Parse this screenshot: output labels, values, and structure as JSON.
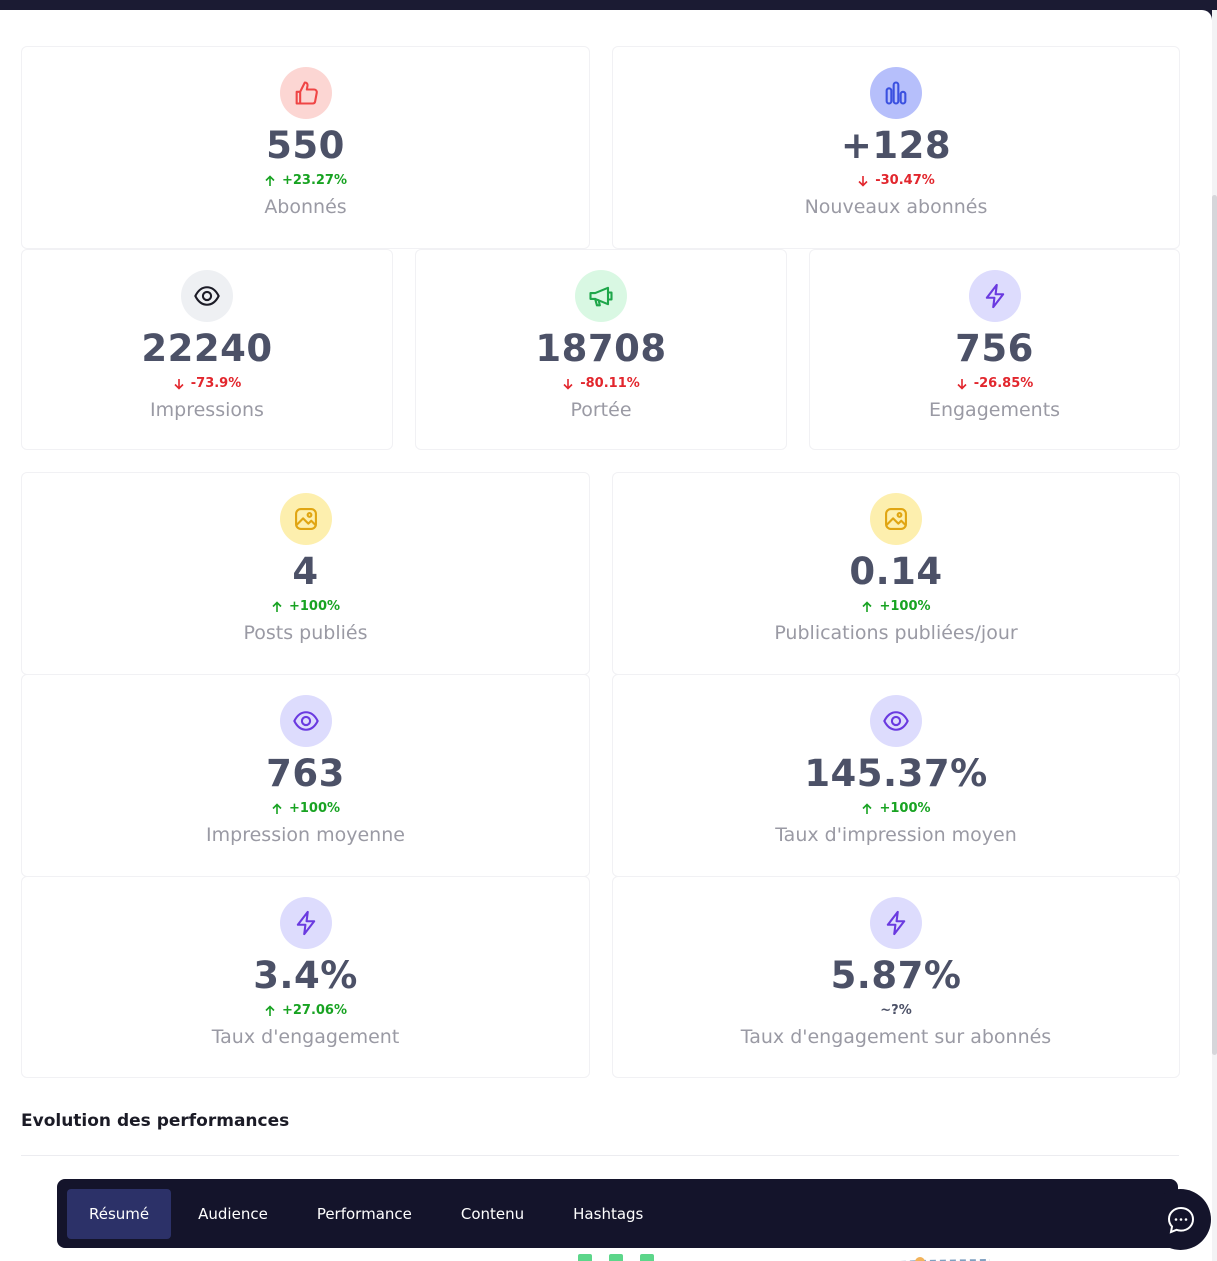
{
  "metrics": [
    {
      "value": "550",
      "change": "+23.27%",
      "direction": "up",
      "label": "Abonnés",
      "icon": "thumbs-up-icon",
      "icon_bg": "#fcd6d3",
      "icon_color": "#ef4545"
    },
    {
      "value": "+128",
      "change": "-30.47%",
      "direction": "down",
      "label": "Nouveaux abonnés",
      "icon": "bar-chart-icon",
      "icon_bg": "#b6bffb",
      "icon_color": "#3b51e0"
    },
    {
      "value": "22240",
      "change": "-73.9%",
      "direction": "down",
      "label": "Impressions",
      "icon": "eye-icon",
      "icon_bg": "#eef0f3",
      "icon_color": "#1b1b26"
    },
    {
      "value": "18708",
      "change": "-80.11%",
      "direction": "down",
      "label": "Portée",
      "icon": "megaphone-icon",
      "icon_bg": "#d9f8e3",
      "icon_color": "#1ea64a"
    },
    {
      "value": "756",
      "change": "-26.85%",
      "direction": "down",
      "label": "Engagements",
      "icon": "lightning-icon",
      "icon_bg": "#dddcfd",
      "icon_color": "#6a3ae0"
    },
    {
      "value": "4",
      "change": "+100%",
      "direction": "up",
      "label": "Posts publiés",
      "icon": "image-icon",
      "icon_bg": "#fdefae",
      "icon_color": "#e0a512"
    },
    {
      "value": "0.14",
      "change": "+100%",
      "direction": "up",
      "label": "Publications publiées/jour",
      "icon": "image-icon",
      "icon_bg": "#fdefae",
      "icon_color": "#e0a512"
    },
    {
      "value": "763",
      "change": "+100%",
      "direction": "up",
      "label": "Impression moyenne",
      "icon": "eye-icon",
      "icon_bg": "#dddcfd",
      "icon_color": "#6a3ae0"
    },
    {
      "value": "145.37%",
      "change": "+100%",
      "direction": "up",
      "label": "Taux d'impression moyen",
      "icon": "eye-icon",
      "icon_bg": "#dddcfd",
      "icon_color": "#6a3ae0"
    },
    {
      "value": "3.4%",
      "change": "+27.06%",
      "direction": "up",
      "label": "Taux d'engagement",
      "icon": "lightning-icon",
      "icon_bg": "#dddcfd",
      "icon_color": "#6a3ae0"
    },
    {
      "value": "5.87%",
      "change": "~?%",
      "direction": "neutral",
      "label": "Taux d'engagement sur abonnés",
      "icon": "lightning-icon",
      "icon_bg": "#dddcfd",
      "icon_color": "#6a3ae0"
    }
  ],
  "section": {
    "title": "Evolution des performances"
  },
  "tabs": [
    {
      "label": "Résumé",
      "active": true
    },
    {
      "label": "Audience",
      "active": false
    },
    {
      "label": "Performance",
      "active": false
    },
    {
      "label": "Contenu",
      "active": false
    },
    {
      "label": "Hashtags",
      "active": false
    }
  ],
  "colors": {
    "up": "#18a322",
    "down": "#e2262d",
    "tabbar": "#14142b",
    "tab_active": "#2c3168"
  },
  "chat": {
    "icon": "chat-bubble-icon"
  }
}
